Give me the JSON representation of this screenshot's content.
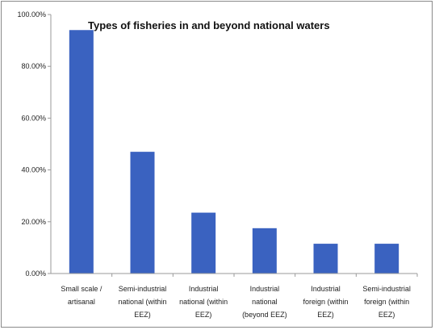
{
  "chart_data": {
    "type": "bar",
    "title": "Types of fisheries in and beyond national waters",
    "categories": [
      [
        "Small scale /",
        "artisanal"
      ],
      [
        "Semi-industrial",
        "national (within",
        "EEZ)"
      ],
      [
        "Industrial",
        "national (within",
        "EEZ)"
      ],
      [
        "Industrial",
        "national",
        "(beyond EEZ)"
      ],
      [
        "Industrial",
        "foreign (within",
        "EEZ)"
      ],
      [
        "Semi-industrial",
        "foreign (within",
        "EEZ)"
      ]
    ],
    "values": [
      94,
      47,
      23.5,
      17.5,
      11.5,
      11.5
    ],
    "ylim": [
      0,
      100
    ],
    "yticks": [
      0,
      20,
      40,
      60,
      80,
      100
    ],
    "ytick_labels": [
      "0.00%",
      "20.00%",
      "40.00%",
      "60.00%",
      "80.00%",
      "100.00%"
    ],
    "xlabel": "",
    "ylabel": "",
    "grid": false,
    "bar_color": "#3a62c0",
    "axis_color": "#9a9a9a"
  }
}
